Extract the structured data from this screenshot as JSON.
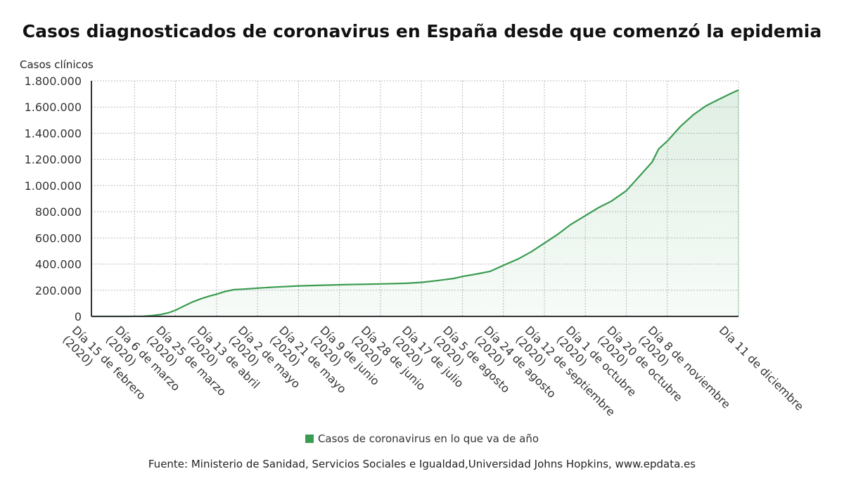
{
  "colors": {
    "line": "#3a9c50",
    "fill": "#3a9c50",
    "grid": "#bbbbbb",
    "axis": "#333333"
  },
  "chart_data": {
    "type": "area",
    "title": "Casos diagnosticados de coronavirus en España desde que comenzó la epidemia",
    "ylabel": "Casos clínicos",
    "xlabel": "",
    "ylim": [
      0,
      1800000
    ],
    "yticks": [
      0,
      200000,
      400000,
      600000,
      800000,
      1000000,
      1200000,
      1400000,
      1600000,
      1800000
    ],
    "ytick_labels": [
      "0",
      "200.000",
      "400.000",
      "600.000",
      "800.000",
      "1.000.000",
      "1.200.000",
      "1.400.000",
      "1.600.000",
      "1.800.000"
    ],
    "xlim": [
      "2020-02-15",
      "2020-12-11"
    ],
    "xticks": [
      "2020-02-15",
      "2020-03-06",
      "2020-03-25",
      "2020-04-13",
      "2020-05-02",
      "2020-05-21",
      "2020-06-09",
      "2020-06-28",
      "2020-07-17",
      "2020-08-05",
      "2020-08-24",
      "2020-09-12",
      "2020-10-01",
      "2020-10-20",
      "2020-11-08",
      "2020-12-11"
    ],
    "xtick_labels": [
      [
        "Día 15 de febrero",
        "(2020)"
      ],
      [
        "Día 6 de marzo",
        "(2020)"
      ],
      [
        "Día 25 de marzo",
        "(2020)"
      ],
      [
        "Día 13 de abril",
        "(2020)"
      ],
      [
        "Día 2 de mayo",
        "(2020)"
      ],
      [
        "Día 21 de mayo",
        "(2020)"
      ],
      [
        "Día 9 de junio",
        "(2020)"
      ],
      [
        "Día 28 de junio",
        "(2020)"
      ],
      [
        "Día 17 de julio",
        "(2020)"
      ],
      [
        "Día 5 de agosto",
        "(2020)"
      ],
      [
        "Día 24 de agosto",
        "(2020)"
      ],
      [
        "Día 12 de septiembre",
        "(2020)"
      ],
      [
        "Día 1 de octubre",
        "(2020)"
      ],
      [
        "Día 20 de octubre",
        "(2020)"
      ],
      [
        "Día 8 de noviembre",
        "(2020)"
      ],
      [
        "Día 11 de diciembre"
      ]
    ],
    "grid": true,
    "legend_position": "bottom",
    "series": [
      {
        "name": "Casos de coronavirus en lo que va de año",
        "points": [
          [
            "2020-02-15",
            2
          ],
          [
            "2020-02-25",
            4
          ],
          [
            "2020-03-01",
            84
          ],
          [
            "2020-03-06",
            400
          ],
          [
            "2020-03-10",
            1600
          ],
          [
            "2020-03-14",
            6400
          ],
          [
            "2020-03-18",
            14000
          ],
          [
            "2020-03-22",
            29000
          ],
          [
            "2020-03-25",
            48000
          ],
          [
            "2020-03-29",
            80000
          ],
          [
            "2020-04-02",
            111000
          ],
          [
            "2020-04-06",
            136000
          ],
          [
            "2020-04-10",
            157000
          ],
          [
            "2020-04-13",
            170000
          ],
          [
            "2020-04-17",
            190000
          ],
          [
            "2020-04-21",
            204000
          ],
          [
            "2020-04-25",
            208000
          ],
          [
            "2020-05-02",
            216000
          ],
          [
            "2020-05-10",
            224000
          ],
          [
            "2020-05-21",
            233000
          ],
          [
            "2020-06-09",
            242000
          ],
          [
            "2020-06-28",
            248000
          ],
          [
            "2020-07-10",
            253000
          ],
          [
            "2020-07-17",
            260000
          ],
          [
            "2020-07-25",
            275000
          ],
          [
            "2020-08-01",
            290000
          ],
          [
            "2020-08-05",
            305000
          ],
          [
            "2020-08-12",
            325000
          ],
          [
            "2020-08-18",
            345000
          ],
          [
            "2020-08-24",
            390000
          ],
          [
            "2020-08-31",
            440000
          ],
          [
            "2020-09-06",
            495000
          ],
          [
            "2020-09-12",
            560000
          ],
          [
            "2020-09-18",
            625000
          ],
          [
            "2020-09-24",
            700000
          ],
          [
            "2020-10-01",
            770000
          ],
          [
            "2020-10-07",
            830000
          ],
          [
            "2020-10-13",
            880000
          ],
          [
            "2020-10-20",
            960000
          ],
          [
            "2020-10-26",
            1070000
          ],
          [
            "2020-11-01",
            1180000
          ],
          [
            "2020-11-04",
            1280000
          ],
          [
            "2020-11-08",
            1340000
          ],
          [
            "2020-11-14",
            1450000
          ],
          [
            "2020-11-20",
            1540000
          ],
          [
            "2020-11-26",
            1610000
          ],
          [
            "2020-12-02",
            1660000
          ],
          [
            "2020-12-07",
            1700000
          ],
          [
            "2020-12-11",
            1730000
          ]
        ]
      }
    ]
  },
  "source": {
    "text": "Fuente: Ministerio de Sanidad, Servicios Sociales e Igualdad,Universidad Johns Hopkins, www.epdata.es"
  }
}
